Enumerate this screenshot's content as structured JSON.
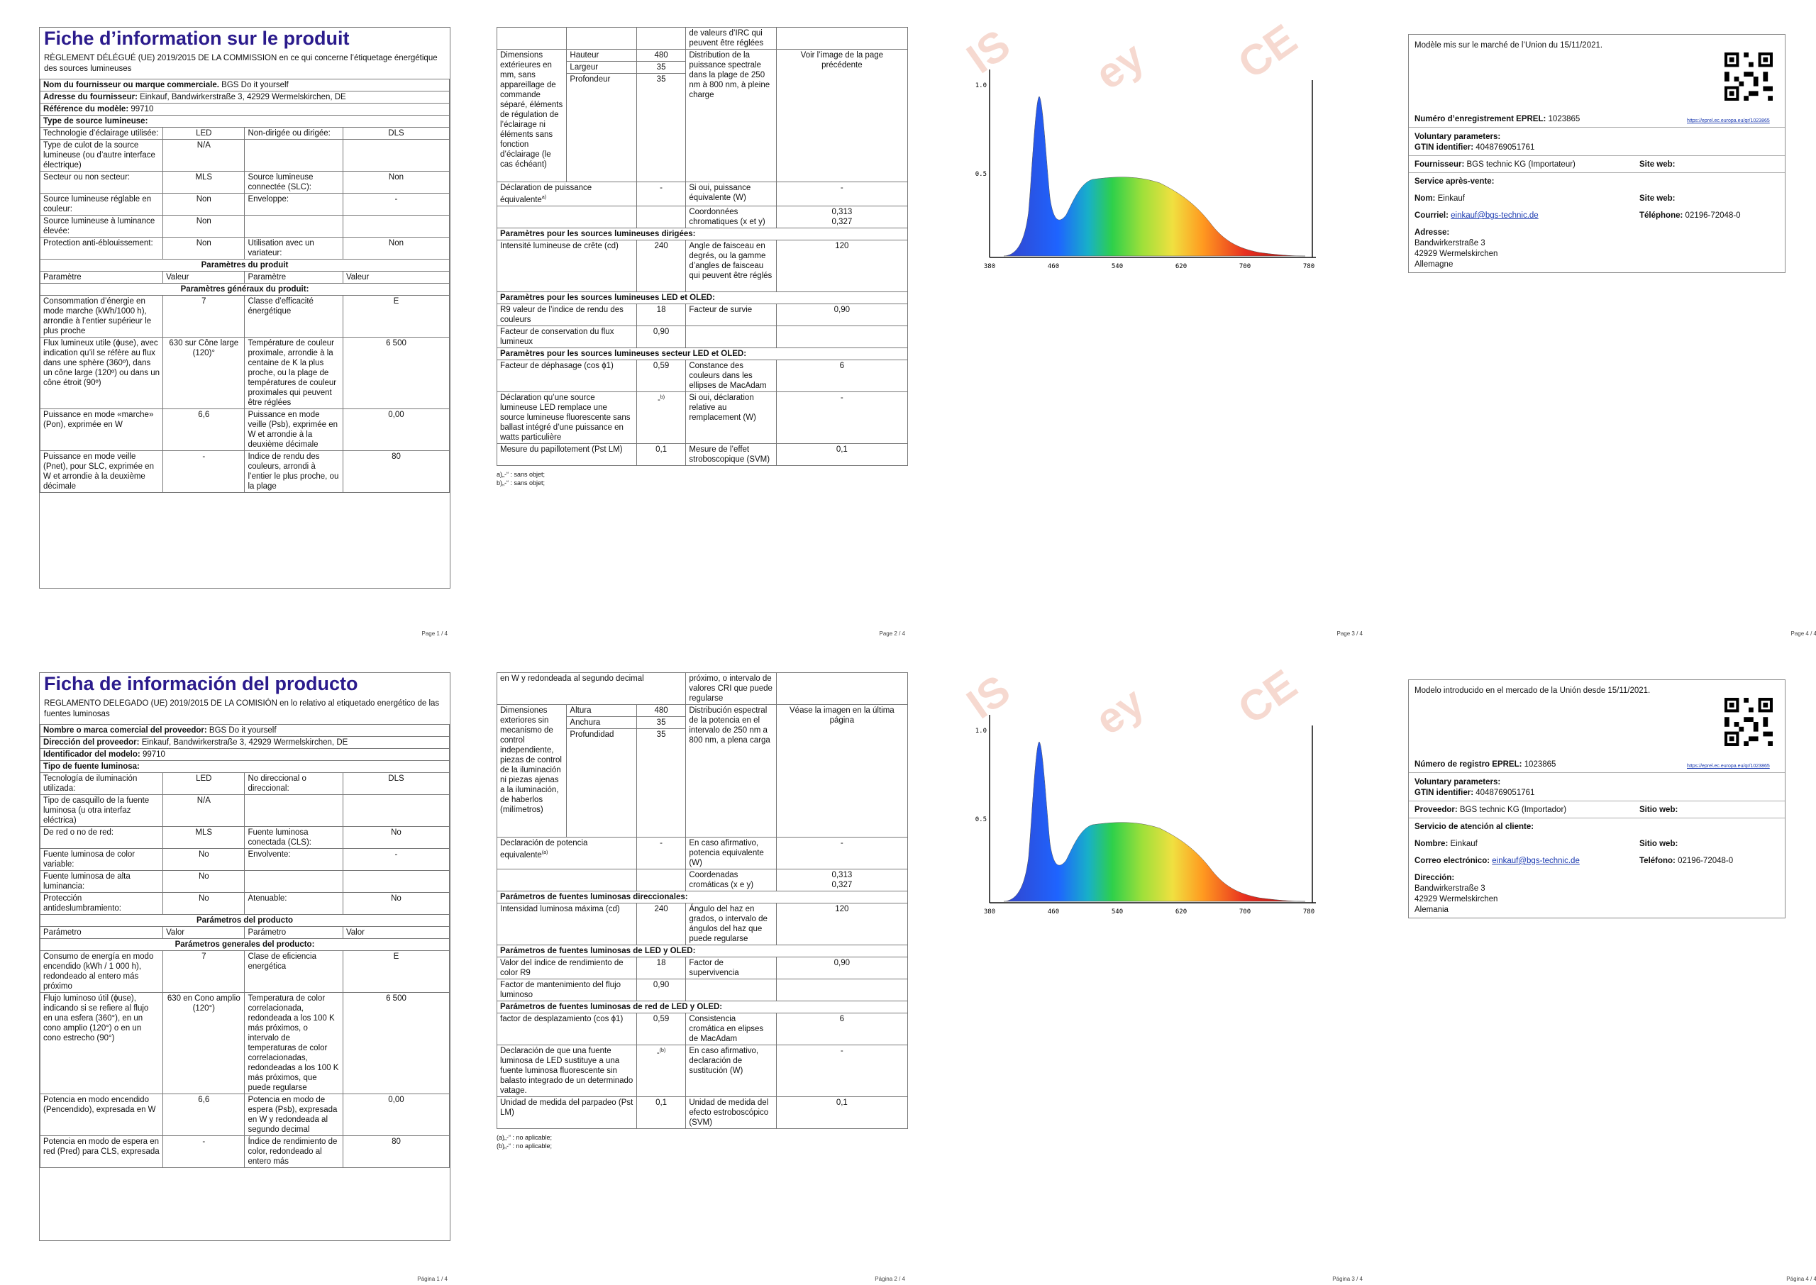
{
  "fr": {
    "title": "Fiche d’information sur le produit",
    "regulation": "RÈGLEMENT DÉLÉGUÉ (UE) 2019/2015 DE LA COMMISSION en ce qui concerne l’étiquetage énergétique des sources lumineuses",
    "supplier_label": "Nom du fournisseur ou marque commerciale.",
    "supplier_value": "BGS Do it yourself",
    "address_label": "Adresse du fournisseur:",
    "address_value": "Einkauf, Bandwirkerstraße 3, 42929 Wermelskirchen, DE",
    "model_label": "Référence du modèle:",
    "model_value": "99710",
    "type_label": "Type de source lumineuse:",
    "rows_type": [
      [
        "Technologie d’éclairage utilisée:",
        "LED",
        "Non-dirigée ou dirigée:",
        "DLS"
      ],
      [
        "Type de culot de la source lumineuse (ou d’autre interface électrique)",
        "N/A",
        "",
        ""
      ],
      [
        "Secteur ou non secteur:",
        "MLS",
        "Source lumineuse connectée (SLC):",
        "Non"
      ],
      [
        "Source lumineuse réglable en couleur:",
        "Non",
        "Enveloppe:",
        "-"
      ],
      [
        "Source lumineuse à luminance élevée:",
        "Non",
        "",
        ""
      ],
      [
        "Protection anti-éblouissement:",
        "Non",
        "Utilisation avec un variateur:",
        "Non"
      ]
    ],
    "product_params": "Paramètres du produit",
    "col_headers": [
      "Paramètre",
      "Valeur",
      "Paramètre",
      "Valeur"
    ],
    "general_params": "Paramètres généraux du produit:",
    "rows_general": [
      [
        "Consommation d’énergie en mode marche (kWh/1000 h), arrondie à l’entier supérieur le plus proche",
        "7",
        "Classe d’efficacité énergétique",
        "E"
      ],
      [
        "Flux lumineux utile (ɸuse), avec indication qu’il se réfère au flux dans une sphère (360º), dans un cône large (120º) ou dans un cône étroit (90º)",
        "630 sur Cône large (120)°",
        "Température de couleur proximale, arrondie à la centaine de K la plus proche, ou la plage de températures de couleur proximales qui peuvent être réglées",
        "6 500"
      ],
      [
        "Puissance en mode «marche» (Pon), exprimée en W",
        "6,6",
        "Puissance en mode veille (Psb), exprimée en W et arrondie à la deuxième décimale",
        "0,00"
      ],
      [
        "Puissance en mode veille (Pnet), pour SLC, exprimée en W et arrondie à la deuxième décimale",
        "-",
        "Indice de rendu des couleurs, arrondi à l’entier le plus proche, ou la plage",
        "80"
      ]
    ],
    "page1": "Page 1 / 4",
    "p2_top": "de valeurs d’IRC qui peuvent être réglées",
    "dims_label": "Dimensions extérieures en mm, sans appareillage de commande séparé, éléments de régulation de l’éclairage ni éléments sans fonction d’éclairage (le cas échéant)",
    "dims": [
      [
        "Hauteur",
        "480"
      ],
      [
        "Largeur",
        "35"
      ],
      [
        "Profondeur",
        "35"
      ]
    ],
    "spectral_label": "Distribution de la puissance spectrale dans la plage de 250 nm à 800 nm, à pleine charge",
    "spectral_value": "Voir l’image de la page précédente",
    "equiv_label": "Déclaration de puissance équivalente",
    "equiv_sup": "a)",
    "equiv_value": "-",
    "equiv2_label": "Si oui, puissance équivalente (W)",
    "equiv2_value": "-",
    "chroma_label": "Coordonnées chromatiques (x et y)",
    "chroma_x": "0,313",
    "chroma_y": "0,327",
    "directional": "Paramètres pour les sources lumineuses dirigées:",
    "peak_label": "Intensité lumineuse de crête (cd)",
    "peak_value": "240",
    "beam_label": "Angle de faisceau en degrés, ou la gamme d’angles de faisceau qui peuvent être réglés",
    "beam_value": "120",
    "led_oled": "Paramètres pour les sources lumineuses LED et OLED:",
    "r9_label": "R9 valeur de l’indice de rendu des couleurs",
    "r9_value": "18",
    "surv_label": "Facteur de survie",
    "surv_value": "0,90",
    "lum_label": "Facteur de conservation du flux lumineux",
    "lum_value": "0,90",
    "mains": "Paramètres pour les sources lumineuses secteur LED et OLED:",
    "phase_label": "Facteur de déphasage (cos ϕ1)",
    "phase_value": "0,59",
    "macadam_label": "Constance des couleurs dans les ellipses de MacAdam",
    "macadam_value": "6",
    "replace_label": "Déclaration qu’une source lumineuse LED remplace une source lumineuse fluorescente sans ballast intégré d’une puissance en watts particulière",
    "replace_value": "-",
    "replace_sup": "b)",
    "replace2_label": "Si oui, déclaration relative au remplacement (W)",
    "replace2_value": "-",
    "flicker_label": "Mesure du papillotement (Pst LM)",
    "flicker_value": "0,1",
    "strobo_label": "Mesure de l’effet stroboscopique (SVM)",
    "strobo_value": "0,1",
    "fn_a": "a)„-“ : sans objet;",
    "fn_b": "b)„-“ : sans objet;",
    "page2": "Page 2 / 4",
    "page3": "Page 3 / 4",
    "p4_model": "Modèle mis sur le marché de l’Union du 15/11/2021.",
    "p4_eprel_label": "Numéro d’enregistrement EPREL:",
    "p4_eprel": "1023865",
    "p4_link": "https://eprel.ec.europa.eu/qr/1023865",
    "p4_vol": "Voluntary parameters:",
    "p4_gtin_label": "GTIN identifier:",
    "p4_gtin": "4048769051761",
    "p4_supplier_label": "Fournisseur:",
    "p4_supplier": "BGS technic KG (Importateur)",
    "p4_site_label": "Site web:",
    "p4_service": "Service après-vente:",
    "p4_name_label": "Nom:",
    "p4_name": "Einkauf",
    "p4_site2_label": "Site web:",
    "p4_mail_label": "Courriel:",
    "p4_mail": "einkauf@bgs-technic.de",
    "p4_phone_label": "Téléphone:",
    "p4_phone": "02196-72048-0",
    "p4_addr_label": "Adresse:",
    "p4_addr1": "Bandwirkerstraße 3",
    "p4_addr2": "42929 Wermelskirchen",
    "p4_addr3": "Allemagne",
    "page4": "Page 4 / 4"
  },
  "es": {
    "title": "Ficha de información del producto",
    "regulation": "REGLAMENTO DELEGADO (UE) 2019/2015 DE LA COMISIÓN en lo relativo al etiquetado energético de las fuentes luminosas",
    "supplier_label": "Nombre o marca comercial del proveedor:",
    "supplier_value": "BGS Do it yourself",
    "address_label": "Dirección del proveedor:",
    "address_value": "Einkauf, Bandwirkerstraße 3, 42929 Wermelskirchen, DE",
    "model_label": "Identificador del modelo:",
    "model_value": "99710",
    "type_label": "Tipo de fuente luminosa:",
    "rows_type": [
      [
        "Tecnología de iluminación utilizada:",
        "LED",
        "No direccional o direccional:",
        "DLS"
      ],
      [
        "Tipo de casquillo de la fuente luminosa (u otra interfaz eléctrica)",
        "N/A",
        "",
        ""
      ],
      [
        "De red o no de red:",
        "MLS",
        "Fuente luminosa conectada (CLS):",
        "No"
      ],
      [
        "Fuente luminosa de color variable:",
        "No",
        "Envolvente:",
        "-"
      ],
      [
        "Fuente luminosa de alta luminancia:",
        "No",
        "",
        ""
      ],
      [
        "Protección antideslumbramiento:",
        "No",
        "Atenuable:",
        "No"
      ]
    ],
    "product_params": "Parámetros del producto",
    "col_headers": [
      "Parámetro",
      "Valor",
      "Parámetro",
      "Valor"
    ],
    "general_params": "Parámetros generales del producto:",
    "rows_general": [
      [
        "Consumo de energía en modo encendido (kWh / 1 000 h), redondeado al entero más próximo",
        "7",
        "Clase de eficiencia energética",
        "E"
      ],
      [
        "Flujo luminoso útil (ɸuse), indicando si se refiere al flujo en una esfera (360°), en un cono amplio (120°) o en un cono estrecho (90°)",
        "630 en Cono amplio (120°)",
        "Temperatura de color correlacionada, redondeada a los 100 K más próximos, o intervalo de temperaturas de color correlacionadas, redondeadas a los 100 K más próximos, que puede regularse",
        "6 500"
      ],
      [
        "Potencia en modo encendido (Pencendido), expresada en W",
        "6,6",
        "Potencia en modo de espera (Psb), expresada en W y redondeada al segundo decimal",
        "0,00"
      ],
      [
        "Potencia en modo de espera en red (Pred) para CLS, expresada",
        "-",
        "Índice de rendimiento de color, redondeado al entero más",
        "80"
      ]
    ],
    "page1": "Página 1 / 4",
    "p2_top_left": "en W y redondeada al segundo decimal",
    "p2_top": "próximo, o intervalo de valores CRI que puede regularse",
    "dims_label": "Dimensiones exteriores sin mecanismo de control independiente, piezas de control de la iluminación ni piezas ajenas a la iluminación, de haberlos (milímetros)",
    "dims": [
      [
        "Altura",
        "480"
      ],
      [
        "Anchura",
        "35"
      ],
      [
        "Profundidad",
        "35"
      ]
    ],
    "spectral_label": "Distribución espectral de la potencia en el intervalo de 250 nm a 800 nm, a plena carga",
    "spectral_value": "Véase la imagen en la última página",
    "equiv_label": "Declaración de potencia equivalente",
    "equiv_sup": "(a)",
    "equiv_value": "-",
    "equiv2_label": "En caso afirmativo, potencia equivalente (W)",
    "equiv2_value": "-",
    "chroma_label": "Coordenadas cromáticas (x e y)",
    "chroma_x": "0,313",
    "chroma_y": "0,327",
    "directional": "Parámetros de fuentes luminosas direccionales:",
    "peak_label": "Intensidad luminosa máxima (cd)",
    "peak_value": "240",
    "beam_label": "Ángulo del haz en grados, o intervalo de ángulos del haz que puede regularse",
    "beam_value": "120",
    "led_oled": "Parámetros de fuentes luminosas de LED y OLED:",
    "r9_label": "Valor del índice de rendimiento de color R9",
    "r9_value": "18",
    "surv_label": "Factor de supervivencia",
    "surv_value": "0,90",
    "lum_label": "Factor de mantenimiento del flujo luminoso",
    "lum_value": "0,90",
    "mains": "Parámetros de fuentes luminosas de red de LED y OLED:",
    "phase_label": "factor de desplazamiento (cos ϕ1)",
    "phase_value": "0,59",
    "macadam_label": "Consistencia cromática en elipses de MacAdam",
    "macadam_value": "6",
    "replace_label": "Declaración de que una fuente luminosa de LED sustituye a una fuente luminosa fluorescente sin balasto integrado de un determinado vatage.",
    "replace_value": "-",
    "replace_sup": "(b)",
    "replace2_label": "En caso afirmativo, declaración de sustitución (W)",
    "replace2_value": "-",
    "flicker_label": "Unidad de medida del parpadeo (Pst LM)",
    "flicker_value": "0,1",
    "strobo_label": "Unidad de medida del efecto estroboscópico (SVM)",
    "strobo_value": "0,1",
    "fn_a": "(a)„-“ : no aplicable;",
    "fn_b": "(b)„-“ : no aplicable;",
    "page2": "Página 2 / 4",
    "page3": "Página 3 / 4",
    "p4_model": "Modelo introducido en el mercado de la Unión desde 15/11/2021.",
    "p4_eprel_label": "Número de registro EPREL:",
    "p4_eprel": "1023865",
    "p4_link": "https://eprel.ec.europa.eu/qr/1023865",
    "p4_vol": "Voluntary parameters:",
    "p4_gtin_label": "GTIN identifier:",
    "p4_gtin": "4048769051761",
    "p4_supplier_label": "Proveedor:",
    "p4_supplier": "BGS technic KG (Importador)",
    "p4_site_label": "Sitio web:",
    "p4_service": "Servicio de atención al cliente:",
    "p4_name_label": "Nombre:",
    "p4_name": "Einkauf",
    "p4_site2_label": "Sitio web:",
    "p4_mail_label": "Correo electrónico:",
    "p4_mail": "einkauf@bgs-technic.de",
    "p4_phone_label": "Teléfono:",
    "p4_phone": "02196-72048-0",
    "p4_addr_label": "Dirección:",
    "p4_addr1": "Bandwirkerstraße 3",
    "p4_addr2": "42929 Wermelskirchen",
    "p4_addr3": "Alemania",
    "page4": "Página 4 / 4"
  },
  "spectrum": {
    "x_ticks": [
      "380",
      "460",
      "540",
      "620",
      "700",
      "780"
    ],
    "y_ticks": [
      "1.0",
      "0.5"
    ],
    "watermark": [
      "IS",
      "ey",
      "CE"
    ]
  }
}
